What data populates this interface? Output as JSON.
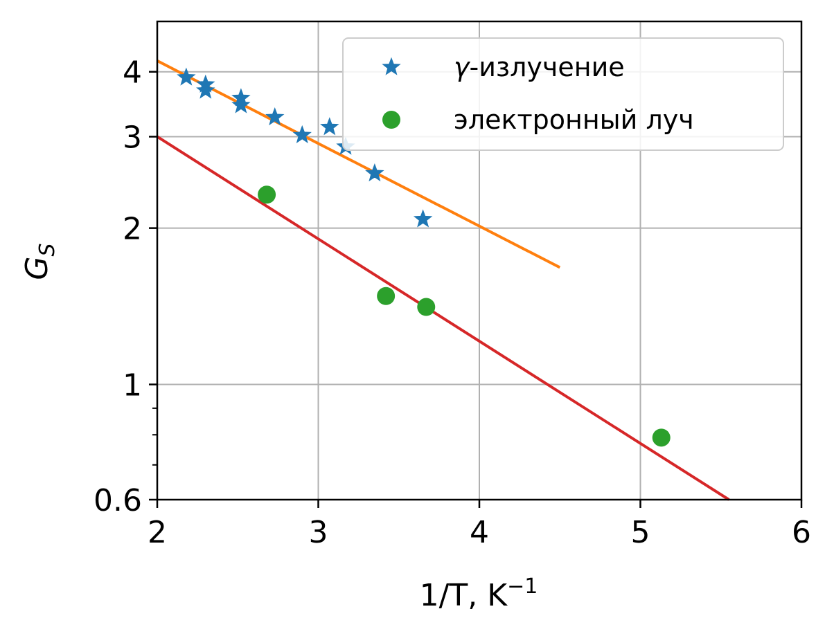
{
  "chart_data": {
    "type": "scatter",
    "xlabel": "1/T, K",
    "xlabel_exp": "−1",
    "ylabel": "G",
    "ylabel_sub": "S",
    "xlim": [
      2,
      6
    ],
    "ylim": [
      0.6,
      5
    ],
    "yscale": "log",
    "grid": true,
    "legend_position": "top-right",
    "x_ticks": [
      2,
      3,
      4,
      5,
      6
    ],
    "x_tick_labels": [
      "2",
      "3",
      "4",
      "5",
      "6"
    ],
    "y_ticks": [
      0.6,
      1,
      2,
      3,
      4
    ],
    "y_tick_labels": [
      "0.6",
      "1",
      "2",
      "3",
      "4"
    ],
    "y_minor_ticks": [
      0.7,
      0.8,
      0.9
    ],
    "series": [
      {
        "name": "γ-излучение",
        "marker": "star",
        "color": "#1f77b4",
        "points": [
          [
            2.18,
            3.9
          ],
          [
            2.3,
            3.78
          ],
          [
            2.3,
            3.68
          ],
          [
            2.52,
            3.56
          ],
          [
            2.52,
            3.45
          ],
          [
            2.73,
            3.27
          ],
          [
            2.9,
            3.02
          ],
          [
            3.07,
            3.13
          ],
          [
            3.17,
            2.87
          ],
          [
            3.35,
            2.55
          ],
          [
            3.65,
            2.08
          ]
        ]
      },
      {
        "name": "электронный луч",
        "marker": "circle",
        "color": "#2ca02c",
        "points": [
          [
            2.68,
            2.32
          ],
          [
            3.42,
            1.48
          ],
          [
            3.67,
            1.41
          ],
          [
            5.13,
            0.79
          ]
        ]
      }
    ],
    "fit_lines": [
      {
        "color": "#ff7f0e",
        "from": [
          2.0,
          4.2
        ],
        "to": [
          4.5,
          1.68
        ]
      },
      {
        "color": "#d62728",
        "from": [
          2.0,
          3.0
        ],
        "to": [
          5.55,
          0.6
        ]
      }
    ]
  }
}
